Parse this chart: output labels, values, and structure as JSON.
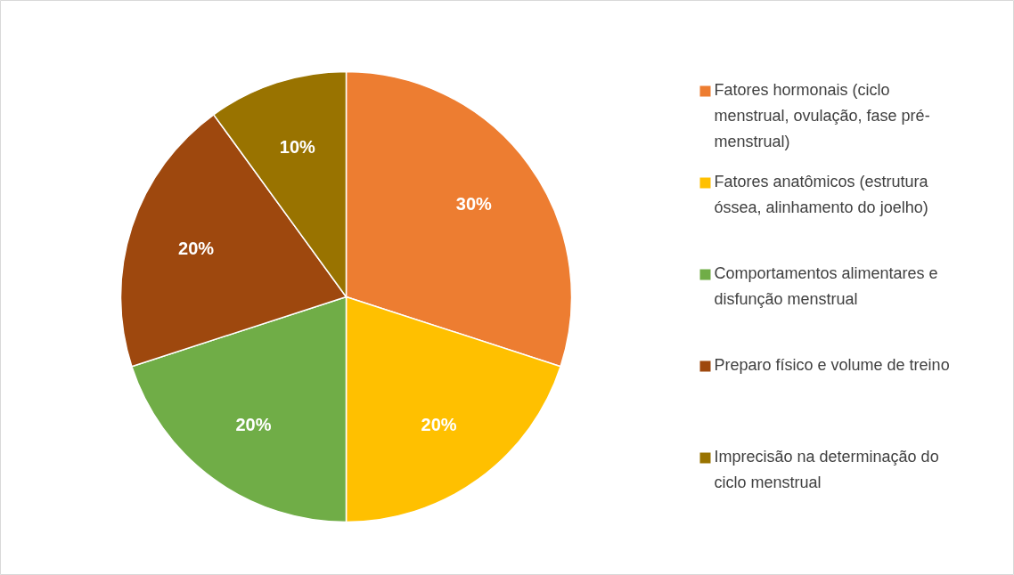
{
  "chart_data": {
    "type": "pie",
    "categories": [
      "Fatores hormonais (ciclo menstrual, ovulação, fase pré-menstrual)",
      "Fatores anatômicos (estrutura óssea, alinhamento do joelho)",
      "Comportamentos alimentares e disfunção menstrual",
      "Preparo físico e volume de treino",
      "Imprecisão na determinação do ciclo menstrual"
    ],
    "values": [
      30,
      20,
      20,
      20,
      10
    ],
    "colors": [
      "#ed7d31",
      "#ffc000",
      "#70ad47",
      "#9e480e",
      "#997300"
    ],
    "value_labels": [
      "30%",
      "20%",
      "20%",
      "20%",
      "10%"
    ],
    "legend": "right"
  }
}
